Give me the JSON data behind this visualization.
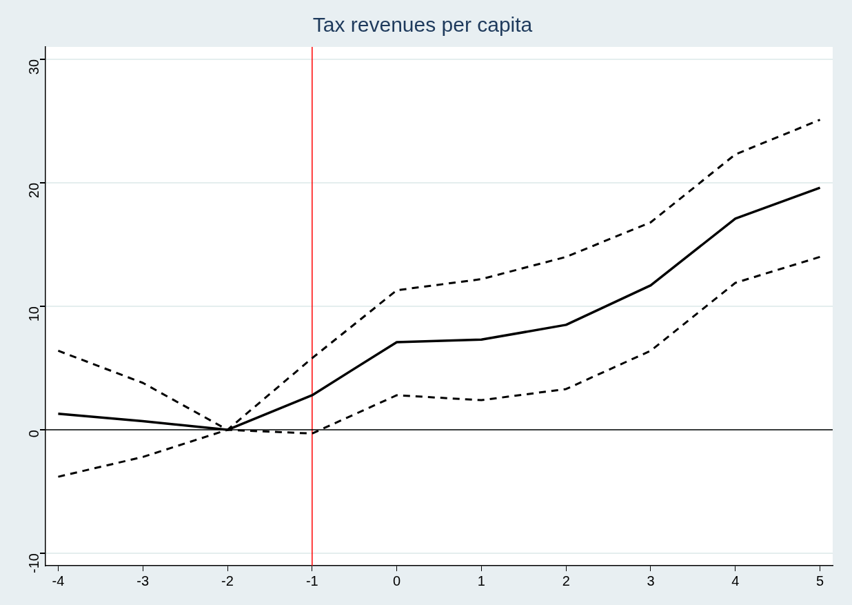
{
  "chart_data": {
    "type": "line",
    "title": "Tax revenues per capita",
    "x": [
      -4,
      -3,
      -2,
      -1,
      0,
      1,
      2,
      3,
      4,
      5
    ],
    "series": [
      {
        "color": "#000000",
        "line_style": "solid",
        "values": [
          1.3,
          0.7,
          0,
          2.8,
          7.1,
          7.3,
          8.5,
          11.7,
          17.1,
          19.6
        ]
      },
      {
        "color": "#000000",
        "line_style": "dashed",
        "values": [
          6.4,
          3.8,
          0,
          5.8,
          11.3,
          12.2,
          14.0,
          16.8,
          22.3,
          25.1
        ]
      },
      {
        "color": "#000000",
        "line_style": "dashed",
        "values": [
          -3.8,
          -2.2,
          0,
          -0.3,
          2.8,
          2.4,
          3.3,
          6.4,
          11.9,
          14.0
        ]
      }
    ],
    "xlim": [
      -4.15,
      5.15
    ],
    "xticks": [
      -4,
      -3,
      -2,
      -1,
      0,
      1,
      2,
      3,
      4,
      5
    ],
    "ylim": [
      -11,
      31
    ],
    "yticks": [
      -10,
      0,
      10,
      20,
      30
    ],
    "grid": "y",
    "legend": false,
    "marker": "none",
    "ref_lines": [
      {
        "axis": "x",
        "value": -1,
        "color": "#ff0000"
      },
      {
        "axis": "y",
        "value": 0,
        "color": "#000000"
      }
    ]
  }
}
